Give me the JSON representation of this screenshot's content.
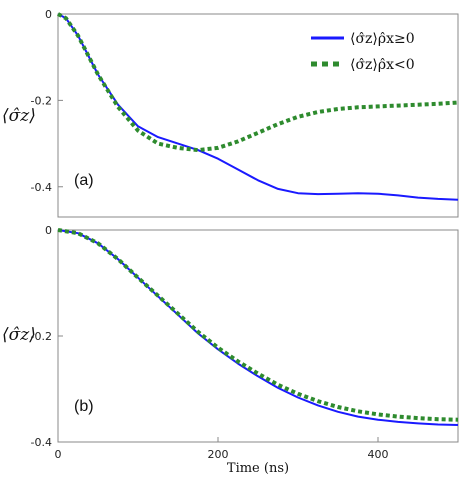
{
  "chart_data": [
    {
      "type": "line",
      "panel_label": "(a)",
      "ylabel": "⟨σ̂z⟩",
      "xlim": [
        0,
        500
      ],
      "ylim": [
        -0.47,
        0
      ],
      "y_ticks": [
        0,
        -0.2,
        -0.4
      ],
      "y_tick_labels": [
        "0",
        "-0.2",
        "-0.4"
      ],
      "legend_placement": "top-right",
      "series": [
        {
          "name": "⟨σ̂z⟩ρ̂x≥0",
          "color": "#1a1aff",
          "style": "solid",
          "x": [
            0,
            10,
            25,
            50,
            75,
            100,
            125,
            150,
            175,
            200,
            225,
            250,
            275,
            300,
            325,
            350,
            375,
            400,
            425,
            450,
            475,
            500
          ],
          "y": [
            0,
            -0.01,
            -0.05,
            -0.14,
            -0.21,
            -0.26,
            -0.285,
            -0.3,
            -0.315,
            -0.335,
            -0.36,
            -0.385,
            -0.405,
            -0.415,
            -0.417,
            -0.416,
            -0.415,
            -0.416,
            -0.42,
            -0.425,
            -0.428,
            -0.43
          ]
        },
        {
          "name": "⟨σ̂z⟩ρ̂x<0",
          "color": "#2e8b2e",
          "style": "dotted",
          "x": [
            0,
            10,
            25,
            50,
            75,
            100,
            125,
            150,
            175,
            200,
            225,
            250,
            275,
            300,
            325,
            350,
            375,
            400,
            425,
            450,
            475,
            500
          ],
          "y": [
            0,
            -0.01,
            -0.05,
            -0.14,
            -0.215,
            -0.27,
            -0.3,
            -0.31,
            -0.315,
            -0.31,
            -0.295,
            -0.275,
            -0.255,
            -0.238,
            -0.227,
            -0.22,
            -0.216,
            -0.214,
            -0.212,
            -0.21,
            -0.208,
            -0.205
          ]
        }
      ]
    },
    {
      "type": "line",
      "panel_label": "(b)",
      "ylabel": "⟨σ̂z⟩",
      "xlabel": "Time (ns)",
      "xlim": [
        0,
        500
      ],
      "ylim": [
        -0.4,
        0
      ],
      "x_ticks": [
        0,
        200,
        400
      ],
      "x_tick_labels": [
        "0",
        "200",
        "400"
      ],
      "y_ticks": [
        0,
        -0.2,
        -0.4
      ],
      "y_tick_labels": [
        "0",
        "-0.2",
        "-0.4"
      ],
      "series": [
        {
          "name": "",
          "color": "#1a1aff",
          "style": "solid",
          "x": [
            0,
            25,
            50,
            75,
            100,
            125,
            150,
            175,
            200,
            225,
            250,
            275,
            300,
            325,
            350,
            375,
            400,
            425,
            450,
            475,
            500
          ],
          "y": [
            0,
            -0.006,
            -0.025,
            -0.055,
            -0.09,
            -0.125,
            -0.16,
            -0.195,
            -0.225,
            -0.252,
            -0.276,
            -0.298,
            -0.316,
            -0.331,
            -0.343,
            -0.352,
            -0.358,
            -0.362,
            -0.365,
            -0.367,
            -0.368
          ]
        },
        {
          "name": "",
          "color": "#2e8b2e",
          "style": "dotted",
          "x": [
            0,
            25,
            50,
            75,
            100,
            125,
            150,
            175,
            200,
            225,
            250,
            275,
            300,
            325,
            350,
            375,
            400,
            425,
            450,
            475,
            500
          ],
          "y": [
            0,
            -0.006,
            -0.025,
            -0.055,
            -0.09,
            -0.124,
            -0.158,
            -0.192,
            -0.222,
            -0.248,
            -0.271,
            -0.292,
            -0.309,
            -0.323,
            -0.334,
            -0.342,
            -0.348,
            -0.352,
            -0.355,
            -0.357,
            -0.358
          ]
        }
      ]
    }
  ]
}
